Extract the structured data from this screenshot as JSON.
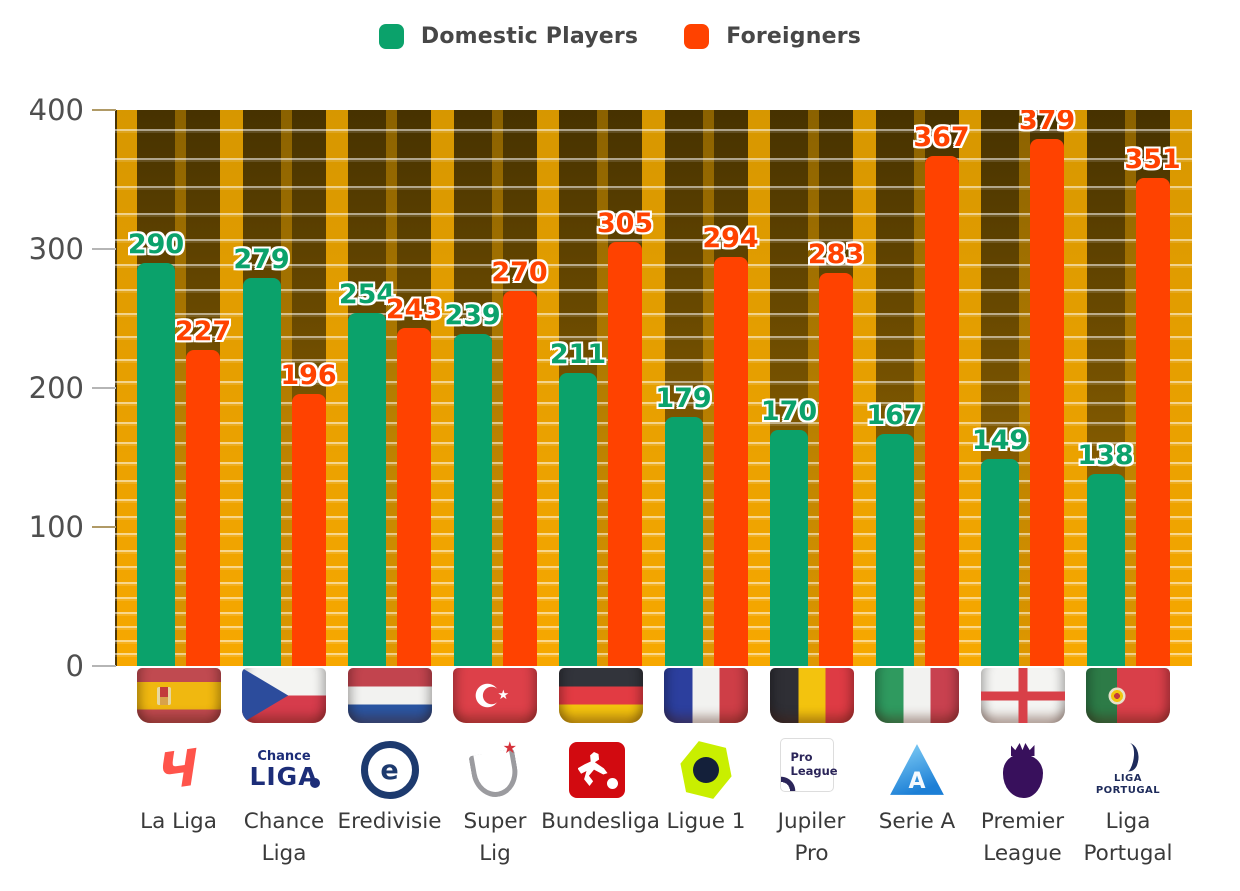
{
  "legend": {
    "items": [
      {
        "label": "Domestic Players",
        "color": "#0BA26B"
      },
      {
        "label": "Foreigners",
        "color": "#FF4200"
      }
    ]
  },
  "chart_data": {
    "type": "bar",
    "title": "",
    "categories": [
      "La Liga",
      "Chance Liga",
      "Eredivisie",
      "Super Lig",
      "Bundesliga",
      "Ligue 1",
      "Jupiler Pro",
      "Serie A",
      "Premier League",
      "Liga Portugal"
    ],
    "x_labels_display": [
      "La Liga",
      "Chance\nLiga",
      "Eredivisie",
      "Super\nLig",
      "Bundesliga",
      "Ligue 1",
      "Jupiler\nPro",
      "Serie A",
      "Premier\nLeague",
      "Liga\nPortugal"
    ],
    "series": [
      {
        "name": "Domestic Players",
        "color": "#0BA26B",
        "values": [
          290,
          279,
          254,
          239,
          211,
          179,
          170,
          167,
          149,
          138
        ]
      },
      {
        "name": "Foreigners",
        "color": "#FF4200",
        "values": [
          227,
          196,
          243,
          270,
          305,
          294,
          283,
          367,
          379,
          351
        ]
      }
    ],
    "ylim": [
      0,
      400
    ],
    "yticks": [
      400,
      300,
      200,
      100,
      0
    ],
    "legend_position": "top",
    "grid": "horizontal-stripes",
    "background_accent": "#F5A602"
  },
  "x_axis": {
    "flags": [
      {
        "country": "Spain",
        "code": "es"
      },
      {
        "country": "Czech Republic",
        "code": "cz"
      },
      {
        "country": "Netherlands",
        "code": "nl"
      },
      {
        "country": "Turkey",
        "code": "tr"
      },
      {
        "country": "Germany",
        "code": "de"
      },
      {
        "country": "France",
        "code": "fr"
      },
      {
        "country": "Belgium",
        "code": "be"
      },
      {
        "country": "Italy",
        "code": "it"
      },
      {
        "country": "England",
        "code": "en"
      },
      {
        "country": "Portugal",
        "code": "pt"
      }
    ],
    "logos": [
      {
        "id": "laliga",
        "name": "la-liga-logo",
        "lines": []
      },
      {
        "id": "chance",
        "name": "chance-liga-logo",
        "lines": [
          "Chance",
          "LIGA"
        ]
      },
      {
        "id": "eredivisie",
        "name": "eredivisie-logo",
        "lines": [
          "e"
        ]
      },
      {
        "id": "superlig",
        "name": "super-lig-logo",
        "lines": []
      },
      {
        "id": "bundesliga",
        "name": "bundesliga-logo",
        "lines": []
      },
      {
        "id": "ligue1",
        "name": "ligue-1-logo",
        "lines": []
      },
      {
        "id": "jupiler",
        "name": "jupiler-pro-league-logo",
        "lines": [
          "Pro",
          "League"
        ]
      },
      {
        "id": "seriea",
        "name": "serie-a-logo",
        "lines": []
      },
      {
        "id": "premier",
        "name": "premier-league-logo",
        "lines": []
      },
      {
        "id": "portugal",
        "name": "liga-portugal-logo",
        "lines": [
          "LIGA",
          "PORTUGAL"
        ]
      }
    ]
  }
}
